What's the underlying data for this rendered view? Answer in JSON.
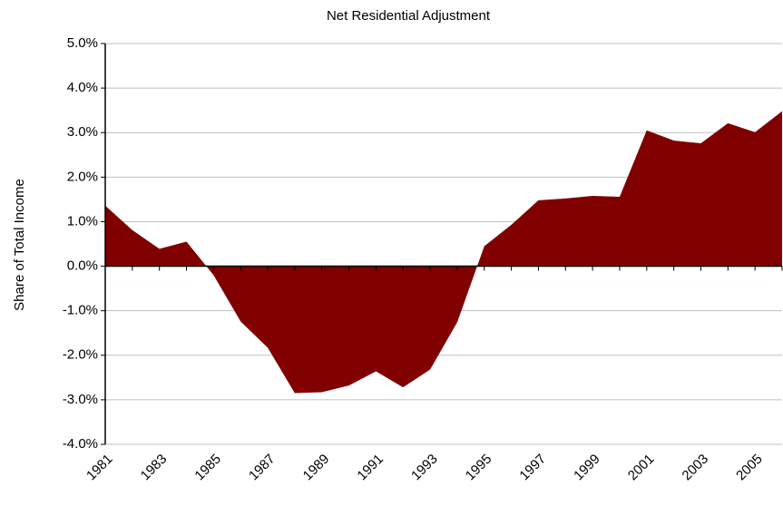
{
  "chart_data": {
    "type": "area",
    "title": "Net Residential Adjustment",
    "y_label": "Share of Total Income",
    "x": [
      1981,
      1982,
      1983,
      1984,
      1985,
      1986,
      1987,
      1988,
      1989,
      1990,
      1991,
      1992,
      1993,
      1994,
      1995,
      1996,
      1997,
      1998,
      1999,
      2000,
      2001,
      2002,
      2003,
      2004,
      2005,
      2006
    ],
    "series": [
      {
        "name": "Net Residential Adjustment",
        "color": "#800000",
        "values": [
          1.36,
          0.81,
          0.39,
          0.55,
          -0.2,
          -1.24,
          -1.83,
          -2.85,
          -2.83,
          -2.68,
          -2.36,
          -2.72,
          -2.32,
          -1.26,
          0.45,
          0.93,
          1.48,
          1.52,
          1.58,
          1.56,
          3.05,
          2.82,
          2.76,
          3.21,
          3.01,
          3.48
        ]
      }
    ],
    "xlim": [
      1981,
      2006
    ],
    "xticks": [
      1981,
      1983,
      1985,
      1987,
      1989,
      1991,
      1993,
      1995,
      1997,
      1999,
      2001,
      2003,
      2005
    ],
    "ylim": [
      -4,
      5
    ],
    "yticks": [
      {
        "value": -4,
        "label": "-4.0%"
      },
      {
        "value": -3,
        "label": "-3.0%"
      },
      {
        "value": -2,
        "label": "-2.0%"
      },
      {
        "value": -1,
        "label": "-1.0%"
      },
      {
        "value": 0,
        "label": "0.0%"
      },
      {
        "value": 1,
        "label": "1.0%"
      },
      {
        "value": 2,
        "label": "2.0%"
      },
      {
        "value": 3,
        "label": "3.0%"
      },
      {
        "value": 4,
        "label": "4.0%"
      },
      {
        "value": 5,
        "label": "5.0%"
      }
    ],
    "grid": true
  }
}
